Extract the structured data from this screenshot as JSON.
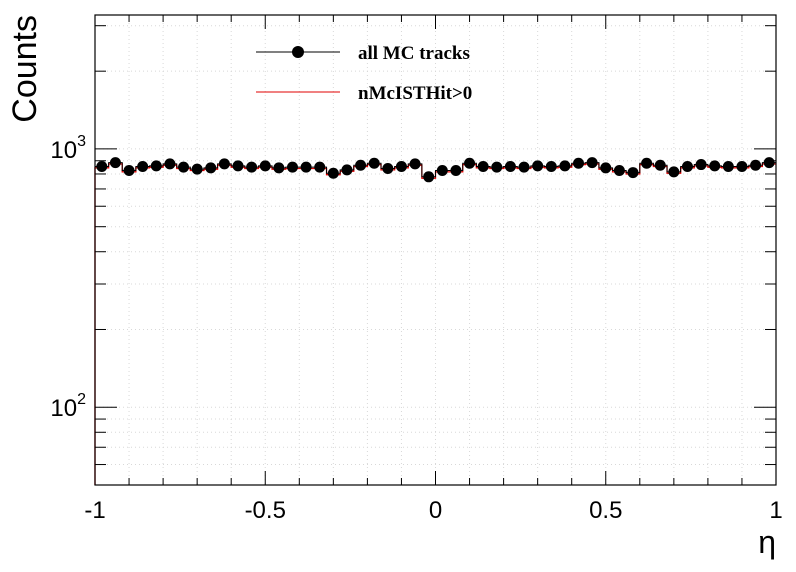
{
  "chart_data": {
    "type": "scatter",
    "xlabel": "η",
    "ylabel": "Counts",
    "xlim": [
      -1,
      1
    ],
    "ylim": [
      50,
      3300
    ],
    "yscale": "log",
    "grid": true,
    "legend_position": "top-center",
    "x_ticks": [
      {
        "value": -1,
        "label": "-1"
      },
      {
        "value": -0.5,
        "label": "-0.5"
      },
      {
        "value": 0,
        "label": "0"
      },
      {
        "value": 0.5,
        "label": "0.5"
      },
      {
        "value": 1,
        "label": "1"
      }
    ],
    "y_ticks": [
      {
        "value": 100,
        "base": "10",
        "exp": "2"
      },
      {
        "value": 1000,
        "base": "10",
        "exp": "3"
      }
    ],
    "x": [
      -0.98,
      -0.94,
      -0.9,
      -0.86,
      -0.82,
      -0.78,
      -0.74,
      -0.7,
      -0.66,
      -0.62,
      -0.58,
      -0.54,
      -0.5,
      -0.46,
      -0.42,
      -0.38,
      -0.34,
      -0.3,
      -0.26,
      -0.22,
      -0.18,
      -0.14,
      -0.1,
      -0.06,
      -0.02,
      0.02,
      0.06,
      0.1,
      0.14,
      0.18,
      0.22,
      0.26,
      0.3,
      0.34,
      0.38,
      0.42,
      0.46,
      0.5,
      0.54,
      0.58,
      0.62,
      0.66,
      0.7,
      0.74,
      0.78,
      0.82,
      0.86,
      0.9,
      0.94,
      0.98
    ],
    "series": [
      {
        "name": "all MC tracks",
        "style": "markers",
        "color": "#000000",
        "values": [
          855,
          885,
          825,
          855,
          860,
          875,
          850,
          835,
          845,
          875,
          860,
          850,
          860,
          845,
          850,
          850,
          850,
          805,
          830,
          865,
          880,
          840,
          855,
          875,
          780,
          825,
          825,
          880,
          855,
          850,
          855,
          850,
          860,
          855,
          860,
          880,
          885,
          845,
          825,
          810,
          880,
          865,
          815,
          855,
          870,
          860,
          855,
          855,
          865,
          885
        ]
      },
      {
        "name": "nMcISTHit>0",
        "style": "step",
        "color": "#e00000",
        "values": [
          845,
          875,
          815,
          845,
          850,
          865,
          840,
          825,
          835,
          865,
          850,
          840,
          850,
          835,
          840,
          840,
          840,
          795,
          820,
          855,
          870,
          830,
          845,
          865,
          770,
          815,
          815,
          870,
          845,
          840,
          845,
          840,
          850,
          845,
          850,
          870,
          875,
          835,
          815,
          800,
          870,
          855,
          805,
          845,
          860,
          850,
          845,
          845,
          855,
          875
        ]
      }
    ]
  }
}
